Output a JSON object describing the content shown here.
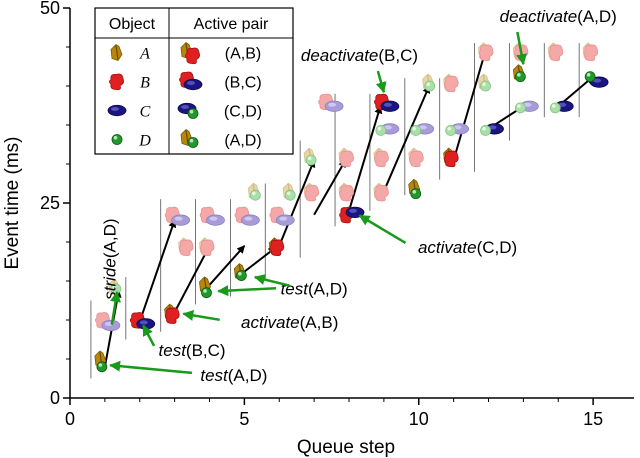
{
  "chart_data": {
    "type": "scatter",
    "xlabel": "Queue step",
    "ylabel": "Event time (ms)",
    "xlim": [
      0,
      16
    ],
    "ylim": [
      0,
      50
    ],
    "xticks": [
      0,
      5,
      10,
      15
    ],
    "yticks": [
      0,
      25,
      50
    ],
    "grid": false,
    "legend": {
      "placement": "top-left",
      "headers": [
        "Object",
        "Active pair"
      ],
      "rows": [
        {
          "object": "A",
          "pair": "(A,B)",
          "pair_objects": [
            "A",
            "B"
          ]
        },
        {
          "object": "B",
          "pair": "(B,C)",
          "pair_objects": [
            "B",
            "C"
          ]
        },
        {
          "object": "C",
          "pair": "(C,D)",
          "pair_objects": [
            "C",
            "D"
          ]
        },
        {
          "object": "D",
          "pair": "(A,D)",
          "pair_objects": [
            "A",
            "D"
          ]
        }
      ]
    },
    "object_colors": {
      "A": {
        "active": "#b8860b",
        "inactive": "#e8d5a8"
      },
      "B": {
        "active": "#e02020",
        "inactive": "#f5a8a8"
      },
      "C": {
        "active": "#1a1580",
        "inactive": "#a89cd8"
      },
      "D": {
        "active": "#1f9a2a",
        "inactive": "#a8e0a8"
      }
    },
    "step_lines": [
      {
        "x": 0.6,
        "y0": 2.5,
        "y1": 12.5
      },
      {
        "x": 1.6,
        "y0": 7.5,
        "y1": 15.5
      },
      {
        "x": 2.6,
        "y0": 8.5,
        "y1": 25.5
      },
      {
        "x": 3.6,
        "y0": 12,
        "y1": 25.5
      },
      {
        "x": 4.6,
        "y0": 13,
        "y1": 25.5
      },
      {
        "x": 5.6,
        "y0": 15,
        "y1": 27.5
      },
      {
        "x": 6.6,
        "y0": 18,
        "y1": 33
      },
      {
        "x": 7.6,
        "y0": 22,
        "y1": 39
      },
      {
        "x": 8.6,
        "y0": 24,
        "y1": 39
      },
      {
        "x": 9.6,
        "y0": 26,
        "y1": 41
      },
      {
        "x": 10.6,
        "y0": 28,
        "y1": 41
      },
      {
        "x": 11.6,
        "y0": 29,
        "y1": 45.5
      },
      {
        "x": 12.6,
        "y0": 33,
        "y1": 45.5
      },
      {
        "x": 13.6,
        "y0": 36,
        "y1": 45.5
      },
      {
        "x": 14.6,
        "y0": 36,
        "y1": 45.5
      }
    ],
    "objects": [
      {
        "step": 1,
        "obj": "A",
        "y": 5,
        "active": true
      },
      {
        "step": 1,
        "obj": "D",
        "y": 4,
        "active": true
      },
      {
        "step": 1,
        "obj": "B",
        "y": 10,
        "active": false
      },
      {
        "step": 1,
        "obj": "C",
        "y": 9.3,
        "active": false
      },
      {
        "step": 1.4,
        "obj": "A",
        "y": 14.2,
        "active": false
      },
      {
        "step": 1.4,
        "obj": "D",
        "y": 14,
        "active": false
      },
      {
        "step": 2,
        "obj": "B",
        "y": 10,
        "active": true
      },
      {
        "step": 2,
        "obj": "C",
        "y": 9.5,
        "active": true
      },
      {
        "step": 3,
        "obj": "A",
        "y": 11,
        "active": true
      },
      {
        "step": 3,
        "obj": "B",
        "y": 10.6,
        "active": true
      },
      {
        "step": 3,
        "obj": "B",
        "y": 23.5,
        "active": false
      },
      {
        "step": 3,
        "obj": "C",
        "y": 22.8,
        "active": false
      },
      {
        "step": 3.4,
        "obj": "A",
        "y": 19.5,
        "active": false
      },
      {
        "step": 3.4,
        "obj": "B",
        "y": 19.3,
        "active": false
      },
      {
        "step": 4,
        "obj": "A",
        "y": 14.5,
        "active": true
      },
      {
        "step": 4,
        "obj": "D",
        "y": 13.5,
        "active": true
      },
      {
        "step": 4,
        "obj": "B",
        "y": 23.5,
        "active": false
      },
      {
        "step": 4,
        "obj": "C",
        "y": 22.8,
        "active": false
      },
      {
        "step": 4,
        "obj": "A",
        "y": 19.5,
        "active": false
      },
      {
        "step": 4,
        "obj": "B",
        "y": 19.3,
        "active": false
      },
      {
        "step": 5,
        "obj": "A",
        "y": 16.2,
        "active": true
      },
      {
        "step": 5,
        "obj": "D",
        "y": 15.7,
        "active": true
      },
      {
        "step": 5,
        "obj": "B",
        "y": 23.5,
        "active": false
      },
      {
        "step": 5,
        "obj": "C",
        "y": 22.8,
        "active": false
      },
      {
        "step": 5.4,
        "obj": "A",
        "y": 26.5,
        "active": false
      },
      {
        "step": 5.4,
        "obj": "D",
        "y": 26,
        "active": false
      },
      {
        "step": 6,
        "obj": "A",
        "y": 19.5,
        "active": true
      },
      {
        "step": 6,
        "obj": "B",
        "y": 19.3,
        "active": true
      },
      {
        "step": 6,
        "obj": "B",
        "y": 23.5,
        "active": false
      },
      {
        "step": 6,
        "obj": "C",
        "y": 22.8,
        "active": false
      },
      {
        "step": 6.4,
        "obj": "A",
        "y": 26.5,
        "active": false
      },
      {
        "step": 6.4,
        "obj": "D",
        "y": 26,
        "active": false
      },
      {
        "step": 7,
        "obj": "A",
        "y": 31,
        "active": false
      },
      {
        "step": 7,
        "obj": "D",
        "y": 30.5,
        "active": false
      },
      {
        "step": 7,
        "obj": "A",
        "y": 26.5,
        "active": false
      },
      {
        "step": 7,
        "obj": "B",
        "y": 26.3,
        "active": false
      },
      {
        "step": 7.4,
        "obj": "B",
        "y": 38,
        "active": false
      },
      {
        "step": 7.4,
        "obj": "C",
        "y": 37.4,
        "active": false
      },
      {
        "step": 8,
        "obj": "B",
        "y": 23.5,
        "active": true
      },
      {
        "step": 8,
        "obj": "C",
        "y": 23.8,
        "active": true
      },
      {
        "step": 8,
        "obj": "A",
        "y": 31,
        "active": false
      },
      {
        "step": 8,
        "obj": "B",
        "y": 30.7,
        "active": false
      },
      {
        "step": 8,
        "obj": "A",
        "y": 26.5,
        "active": false
      },
      {
        "step": 8,
        "obj": "B",
        "y": 26.3,
        "active": false
      },
      {
        "step": 9,
        "obj": "B",
        "y": 38,
        "active": true
      },
      {
        "step": 9,
        "obj": "C",
        "y": 37.4,
        "active": true
      },
      {
        "step": 9,
        "obj": "C",
        "y": 34.5,
        "active": false
      },
      {
        "step": 9,
        "obj": "D",
        "y": 34.3,
        "active": false
      },
      {
        "step": 9,
        "obj": "A",
        "y": 31,
        "active": false
      },
      {
        "step": 9,
        "obj": "B",
        "y": 30.7,
        "active": false
      },
      {
        "step": 9,
        "obj": "A",
        "y": 26.5,
        "active": false
      },
      {
        "step": 9,
        "obj": "B",
        "y": 26.3,
        "active": false
      },
      {
        "step": 10,
        "obj": "A",
        "y": 27,
        "active": true
      },
      {
        "step": 10,
        "obj": "D",
        "y": 26.2,
        "active": true
      },
      {
        "step": 10,
        "obj": "C",
        "y": 34.5,
        "active": false
      },
      {
        "step": 10,
        "obj": "D",
        "y": 34.3,
        "active": false
      },
      {
        "step": 10,
        "obj": "A",
        "y": 31,
        "active": false
      },
      {
        "step": 10,
        "obj": "B",
        "y": 30.7,
        "active": false
      },
      {
        "step": 10.4,
        "obj": "A",
        "y": 40.5,
        "active": false
      },
      {
        "step": 10.4,
        "obj": "D",
        "y": 40,
        "active": false
      },
      {
        "step": 11,
        "obj": "A",
        "y": 31,
        "active": true
      },
      {
        "step": 11,
        "obj": "B",
        "y": 30.7,
        "active": true
      },
      {
        "step": 11,
        "obj": "C",
        "y": 34.5,
        "active": false
      },
      {
        "step": 11,
        "obj": "D",
        "y": 34.3,
        "active": false
      },
      {
        "step": 11,
        "obj": "A",
        "y": 40.5,
        "active": false
      },
      {
        "step": 11,
        "obj": "B",
        "y": 40.3,
        "active": false
      },
      {
        "step": 12,
        "obj": "A",
        "y": 44.5,
        "active": false
      },
      {
        "step": 12,
        "obj": "B",
        "y": 44.3,
        "active": false
      },
      {
        "step": 12,
        "obj": "C",
        "y": 34.5,
        "active": true
      },
      {
        "step": 12,
        "obj": "D",
        "y": 34.3,
        "active": false
      },
      {
        "step": 12,
        "obj": "A",
        "y": 40.5,
        "active": false
      },
      {
        "step": 12,
        "obj": "D",
        "y": 40,
        "active": false
      },
      {
        "step": 13,
        "obj": "A",
        "y": 44.5,
        "active": false
      },
      {
        "step": 13,
        "obj": "B",
        "y": 44.3,
        "active": false
      },
      {
        "step": 13,
        "obj": "C",
        "y": 37.4,
        "active": false
      },
      {
        "step": 13,
        "obj": "D",
        "y": 37.2,
        "active": false
      },
      {
        "step": 13,
        "obj": "A",
        "y": 41.7,
        "active": true
      },
      {
        "step": 13,
        "obj": "D",
        "y": 41.2,
        "active": true
      },
      {
        "step": 14,
        "obj": "A",
        "y": 44.5,
        "active": false
      },
      {
        "step": 14,
        "obj": "B",
        "y": 44.3,
        "active": false
      },
      {
        "step": 14,
        "obj": "C",
        "y": 37.4,
        "active": true
      },
      {
        "step": 14,
        "obj": "D",
        "y": 37.2,
        "active": false
      },
      {
        "step": 15,
        "obj": "A",
        "y": 44.5,
        "active": false
      },
      {
        "step": 15,
        "obj": "B",
        "y": 44.3,
        "active": false
      },
      {
        "step": 15,
        "obj": "C",
        "y": 40.5,
        "active": true
      },
      {
        "step": 15,
        "obj": "D",
        "y": 41.2,
        "active": true
      }
    ],
    "transitions": [
      {
        "from": [
          1,
          4
        ],
        "to": [
          1.4,
          13.8
        ]
      },
      {
        "from": [
          2,
          9.8
        ],
        "to": [
          3,
          22.8
        ]
      },
      {
        "from": [
          3,
          11
        ],
        "to": [
          4,
          19.5
        ]
      },
      {
        "from": [
          4,
          14.5
        ],
        "to": [
          5,
          19.5
        ]
      },
      {
        "from": [
          5,
          16.2
        ],
        "to": [
          5.9,
          19.3
        ]
      },
      {
        "from": [
          6,
          19.5
        ],
        "to": [
          7,
          30.5
        ]
      },
      {
        "from": [
          7,
          23.5
        ],
        "to": [
          7.9,
          30.5
        ]
      },
      {
        "from": [
          8,
          24
        ],
        "to": [
          8.9,
          37.4
        ]
      },
      {
        "from": [
          9,
          26.5
        ],
        "to": [
          10.3,
          40
        ]
      },
      {
        "from": [
          11,
          30.5
        ],
        "to": [
          11.9,
          44.3
        ]
      },
      {
        "from": [
          12,
          34.5
        ],
        "to": [
          13,
          37.4
        ]
      },
      {
        "from": [
          14,
          37.4
        ],
        "to": [
          15,
          41.2
        ]
      }
    ],
    "annotations": [
      {
        "name": "test",
        "args": "(A,D)",
        "text_x": 4.7,
        "text_y": 2.2,
        "arrow_to": [
          1.15,
          4.2
        ]
      },
      {
        "name": "test",
        "args": "(B,C)",
        "text_x": 3.5,
        "text_y": 5.4,
        "arrow_to": [
          2.1,
          9.3
        ]
      },
      {
        "name": "activate",
        "args": "(A,B)",
        "text_x": 6.3,
        "text_y": 9.0,
        "arrow_to": [
          3.25,
          10.8
        ]
      },
      {
        "name": "test",
        "args": "(A,D)",
        "text_x": 7.0,
        "text_y": 13.3,
        "arrow_to": [
          4.25,
          13.7
        ]
      },
      {
        "name": "test",
        "args": "(A,D)",
        "text_x": 0,
        "text_y": 0,
        "arrow_to": [
          5.3,
          15.5
        ],
        "arrow_from": [
          6.3,
          14.4
        ],
        "label_shared": true
      },
      {
        "name": "activate",
        "args": "(C,D)",
        "text_x": 11.4,
        "text_y": 18.6,
        "arrow_to": [
          8.3,
          23.4
        ]
      },
      {
        "name": "deactivate",
        "args": "(B,C)",
        "text_x": 8.3,
        "text_y": 43.2,
        "arrow_to": [
          9.0,
          39.2
        ]
      },
      {
        "name": "deactivate",
        "args": "(A,D)",
        "text_x": 14.0,
        "text_y": 48.2,
        "arrow_to": [
          13.0,
          42.8
        ]
      },
      {
        "name": "stride",
        "args": "(A,D)",
        "text_x": 1.3,
        "text_y": 12.6,
        "arrow_to": [
          1.35,
          13.6
        ],
        "vertical": true
      }
    ]
  }
}
